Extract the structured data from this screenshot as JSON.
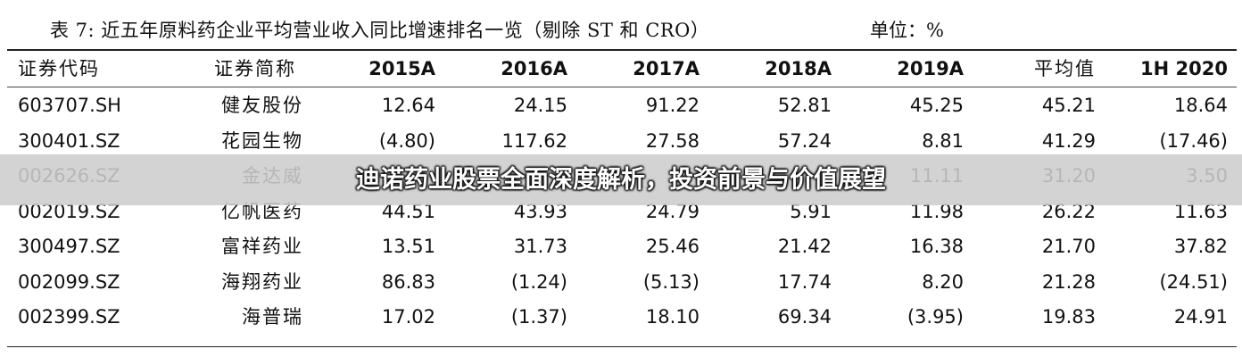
{
  "title": "表 7:  近五年原料药企业平均营业收入同比增速排名一览（剔除 ST 和 CRO）",
  "unit": "单位：%",
  "table": {
    "headers": [
      "证券代码",
      "证券简称",
      "2015A",
      "2016A",
      "2017A",
      "2018A",
      "2019A",
      "平均值",
      "1H 2020"
    ],
    "rows": [
      [
        "603707.SH",
        "健友股份",
        "12.64",
        "24.15",
        "91.22",
        "52.81",
        "45.25",
        "45.21",
        "18.64"
      ],
      [
        "300401.SZ",
        "花园生物",
        "(4.80)",
        "117.62",
        "27.58",
        "57.24",
        "8.81",
        "41.29",
        "(17.46)"
      ],
      [
        "002626.SZ",
        "金达威",
        "",
        "",
        "25.",
        "",
        "11.11",
        "31.20",
        "3.50"
      ],
      [
        "002019.SZ",
        "亿帆医药",
        "44.51",
        "43.93",
        "24.79",
        "5.91",
        "11.98",
        "26.22",
        "11.63"
      ],
      [
        "300497.SZ",
        "富祥药业",
        "13.51",
        "31.73",
        "25.46",
        "21.42",
        "16.38",
        "21.70",
        "37.82"
      ],
      [
        "002099.SZ",
        "海翔药业",
        "86.83",
        "(1.24)",
        "(5.13)",
        "17.74",
        "8.20",
        "21.28",
        "(24.51)"
      ],
      [
        "002399.SZ",
        "海普瑞",
        "17.02",
        "(1.37)",
        "18.10",
        "69.34",
        "(3.95)",
        "19.83",
        "24.91"
      ]
    ]
  },
  "banner": {
    "text": "迪诺药业股票全面深度解析，投资前景与价值展望"
  }
}
